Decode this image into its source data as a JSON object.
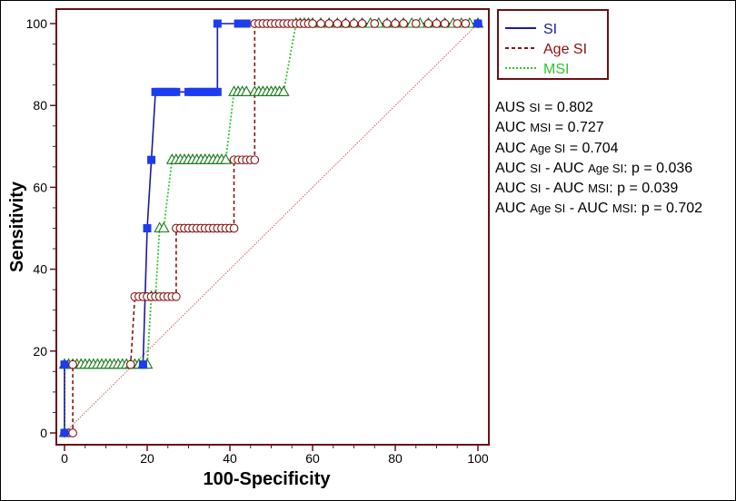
{
  "colors": {
    "frame": "#6b0f14",
    "si": "#1b1b9a",
    "si_marker": "#1c3cf0",
    "age_si": "#8b1010",
    "msi": "#2fc52f",
    "msi_marker": "#1a7a1a",
    "diagonal": "#c06060"
  },
  "chart_data": {
    "type": "line",
    "xlabel": "100-Specificity",
    "ylabel": "Sensitivity",
    "xlim": [
      0,
      100
    ],
    "ylim": [
      0,
      100
    ],
    "x_ticks": [
      "0",
      "20",
      "40",
      "60",
      "80",
      "100"
    ],
    "y_ticks": [
      "0",
      "20",
      "40",
      "60",
      "80",
      "100"
    ],
    "legend_position": "top-right (outside plot)",
    "reference_line": "diagonal from (0,0) to (100,100)",
    "series": [
      {
        "name": "SI",
        "style": "solid",
        "marker": "square",
        "points": [
          [
            0,
            0
          ],
          [
            0,
            16.7
          ],
          [
            19,
            16.7
          ],
          [
            20,
            50
          ],
          [
            21,
            66.7
          ],
          [
            22,
            83.3
          ],
          [
            23,
            83.3
          ],
          [
            24,
            83.3
          ],
          [
            25,
            83.3
          ],
          [
            26,
            83.3
          ],
          [
            27,
            83.3
          ],
          [
            30,
            83.3
          ],
          [
            31,
            83.3
          ],
          [
            32,
            83.3
          ],
          [
            33,
            83.3
          ],
          [
            34,
            83.3
          ],
          [
            35,
            83.3
          ],
          [
            36,
            83.3
          ],
          [
            37,
            83.3
          ],
          [
            37,
            100
          ],
          [
            42,
            100
          ],
          [
            43,
            100
          ],
          [
            44,
            100
          ],
          [
            100,
            100
          ]
        ]
      },
      {
        "name": "Age SI",
        "style": "dashed",
        "marker": "circle",
        "points": [
          [
            0,
            0
          ],
          [
            1,
            0
          ],
          [
            2,
            0
          ],
          [
            2,
            16.7
          ],
          [
            16,
            16.7
          ],
          [
            17,
            33.3
          ],
          [
            18,
            33.3
          ],
          [
            19,
            33.3
          ],
          [
            20,
            33.3
          ],
          [
            21,
            33.3
          ],
          [
            22,
            33.3
          ],
          [
            23,
            33.3
          ],
          [
            24,
            33.3
          ],
          [
            25,
            33.3
          ],
          [
            26,
            33.3
          ],
          [
            27,
            33.3
          ],
          [
            27,
            50
          ],
          [
            28,
            50
          ],
          [
            29,
            50
          ],
          [
            30,
            50
          ],
          [
            31,
            50
          ],
          [
            32,
            50
          ],
          [
            33,
            50
          ],
          [
            34,
            50
          ],
          [
            35,
            50
          ],
          [
            36,
            50
          ],
          [
            37,
            50
          ],
          [
            38,
            50
          ],
          [
            39,
            50
          ],
          [
            40,
            50
          ],
          [
            41,
            50
          ],
          [
            41,
            66.7
          ],
          [
            42,
            66.7
          ],
          [
            43,
            66.7
          ],
          [
            44,
            66.7
          ],
          [
            45,
            66.7
          ],
          [
            46,
            66.7
          ],
          [
            46,
            100
          ],
          [
            47,
            100
          ],
          [
            48,
            100
          ],
          [
            49,
            100
          ],
          [
            50,
            100
          ],
          [
            51,
            100
          ],
          [
            52,
            100
          ],
          [
            53,
            100
          ],
          [
            54,
            100
          ],
          [
            55,
            100
          ],
          [
            56,
            100
          ],
          [
            57,
            100
          ],
          [
            58,
            100
          ],
          [
            59,
            100
          ],
          [
            60,
            100
          ],
          [
            62,
            100
          ],
          [
            64,
            100
          ],
          [
            66,
            100
          ],
          [
            68,
            100
          ],
          [
            70,
            100
          ],
          [
            72,
            100
          ],
          [
            75,
            100
          ],
          [
            78,
            100
          ],
          [
            80,
            100
          ],
          [
            82,
            100
          ],
          [
            85,
            100
          ],
          [
            88,
            100
          ],
          [
            90,
            100
          ],
          [
            92,
            100
          ],
          [
            95,
            100
          ],
          [
            97,
            100
          ],
          [
            100,
            100
          ]
        ]
      },
      {
        "name": "MSI",
        "style": "dotted",
        "marker": "triangle",
        "points": [
          [
            0,
            0
          ],
          [
            0,
            16.7
          ],
          [
            1,
            16.7
          ],
          [
            2,
            16.7
          ],
          [
            3,
            16.7
          ],
          [
            4,
            16.7
          ],
          [
            5,
            16.7
          ],
          [
            6,
            16.7
          ],
          [
            7,
            16.7
          ],
          [
            8,
            16.7
          ],
          [
            9,
            16.7
          ],
          [
            10,
            16.7
          ],
          [
            11,
            16.7
          ],
          [
            12,
            16.7
          ],
          [
            13,
            16.7
          ],
          [
            14,
            16.7
          ],
          [
            15,
            16.7
          ],
          [
            16,
            16.7
          ],
          [
            17,
            16.7
          ],
          [
            18,
            16.7
          ],
          [
            19,
            16.7
          ],
          [
            20,
            16.7
          ],
          [
            21,
            33.3
          ],
          [
            22,
            33.3
          ],
          [
            23,
            50
          ],
          [
            24,
            50
          ],
          [
            26,
            66.7
          ],
          [
            27,
            66.7
          ],
          [
            28,
            66.7
          ],
          [
            29,
            66.7
          ],
          [
            30,
            66.7
          ],
          [
            31,
            66.7
          ],
          [
            32,
            66.7
          ],
          [
            33,
            66.7
          ],
          [
            34,
            66.7
          ],
          [
            35,
            66.7
          ],
          [
            36,
            66.7
          ],
          [
            37,
            66.7
          ],
          [
            38,
            66.7
          ],
          [
            39,
            66.7
          ],
          [
            41,
            83.3
          ],
          [
            42,
            83.3
          ],
          [
            43,
            83.3
          ],
          [
            44,
            83.3
          ],
          [
            46,
            83.3
          ],
          [
            47,
            83.3
          ],
          [
            48,
            83.3
          ],
          [
            49,
            83.3
          ],
          [
            50,
            83.3
          ],
          [
            51,
            83.3
          ],
          [
            52,
            83.3
          ],
          [
            53,
            83.3
          ],
          [
            56,
            100
          ],
          [
            57,
            100
          ],
          [
            58,
            100
          ],
          [
            59,
            100
          ],
          [
            60,
            100
          ],
          [
            62,
            100
          ],
          [
            64,
            100
          ],
          [
            66,
            100
          ],
          [
            68,
            100
          ],
          [
            70,
            100
          ],
          [
            72,
            100
          ],
          [
            74,
            100
          ],
          [
            76,
            100
          ],
          [
            78,
            100
          ],
          [
            80,
            100
          ],
          [
            82,
            100
          ],
          [
            84,
            100
          ],
          [
            86,
            100
          ],
          [
            88,
            100
          ],
          [
            90,
            100
          ],
          [
            92,
            100
          ],
          [
            94,
            100
          ],
          [
            96,
            100
          ],
          [
            98,
            100
          ],
          [
            100,
            100
          ]
        ]
      }
    ],
    "annotations": [
      {
        "prefix": "AUS ",
        "sub": "SI",
        "suffix": " = 0.802"
      },
      {
        "prefix": "AUC ",
        "sub": "MSI",
        "suffix": " = 0.727"
      },
      {
        "prefix": "AUC ",
        "sub": "Age SI",
        "suffix": " = 0.704"
      },
      {
        "prefix": "AUC ",
        "sub": "SI",
        "mid": " - AUC ",
        "sub2": "Age SI",
        "suffix": ": p = 0.036"
      },
      {
        "prefix": "AUC ",
        "sub": "SI",
        "mid": " - AUC ",
        "sub2": "MSI",
        "suffix": ": p = 0.039"
      },
      {
        "prefix": "AUC ",
        "sub": "Age SI",
        "mid": " - AUC ",
        "sub2": "MSI",
        "suffix": ": p = 0.702"
      }
    ]
  }
}
